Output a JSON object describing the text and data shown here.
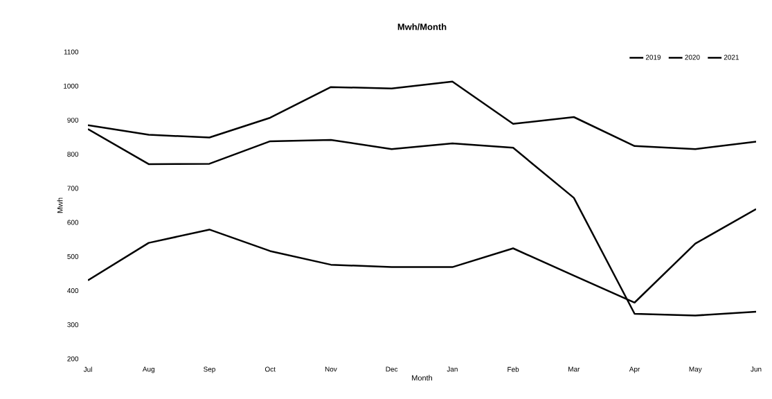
{
  "chart_data": {
    "type": "line",
    "title": "Mwh/Month",
    "xlabel": "Month",
    "ylabel": "Mwh",
    "categories": [
      "Jul",
      "Aug",
      "Sep",
      "Oct",
      "Nov",
      "Dec",
      "Jan",
      "Feb",
      "Mar",
      "Apr",
      "May",
      "Jun"
    ],
    "series": [
      {
        "name": "2019",
        "color": "#000000",
        "values": [
          885,
          857,
          849,
          907,
          997,
          993,
          1013,
          889,
          909,
          824,
          815,
          837
        ]
      },
      {
        "name": "2020",
        "color": "#000000",
        "values": [
          874,
          771,
          772,
          838,
          842,
          815,
          832,
          819,
          672,
          332,
          327,
          338
        ]
      },
      {
        "name": "2021",
        "color": "#000000",
        "values": [
          430,
          540,
          579,
          516,
          476,
          469,
          469,
          524,
          444,
          365,
          538,
          639
        ]
      }
    ],
    "ylim": [
      200,
      1100
    ],
    "yticks": [
      200,
      300,
      400,
      500,
      600,
      700,
      800,
      900,
      1000,
      1100
    ],
    "grid": false,
    "legend": "top right",
    "marker": "none",
    "line_style": "solid"
  }
}
